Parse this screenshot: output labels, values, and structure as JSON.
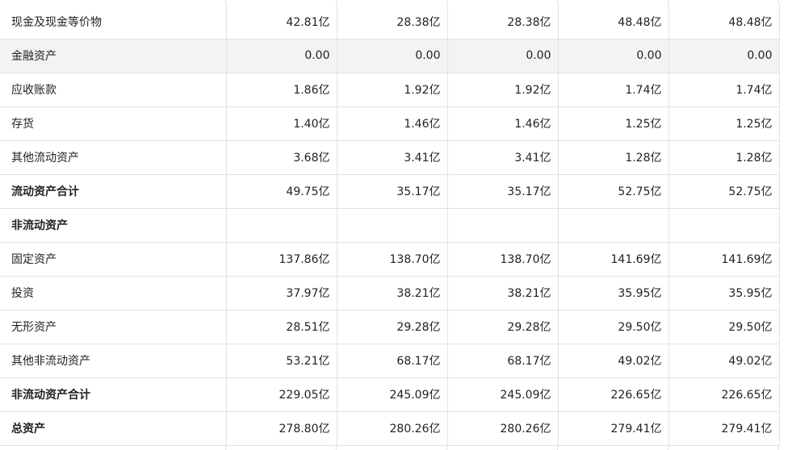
{
  "rows": [
    {
      "label": "现金及现金等价物",
      "values": [
        "42.81亿",
        "28.38亿",
        "28.38亿",
        "48.48亿",
        "48.48亿"
      ],
      "bold": false,
      "shaded": false
    },
    {
      "label": "金融资产",
      "values": [
        "0.00",
        "0.00",
        "0.00",
        "0.00",
        "0.00"
      ],
      "bold": false,
      "shaded": true
    },
    {
      "label": "应收账款",
      "values": [
        "1.86亿",
        "1.92亿",
        "1.92亿",
        "1.74亿",
        "1.74亿"
      ],
      "bold": false,
      "shaded": false
    },
    {
      "label": "存货",
      "values": [
        "1.40亿",
        "1.46亿",
        "1.46亿",
        "1.25亿",
        "1.25亿"
      ],
      "bold": false,
      "shaded": false
    },
    {
      "label": "其他流动资产",
      "values": [
        "3.68亿",
        "3.41亿",
        "3.41亿",
        "1.28亿",
        "1.28亿"
      ],
      "bold": false,
      "shaded": false
    },
    {
      "label": "流动资产合计",
      "values": [
        "49.75亿",
        "35.17亿",
        "35.17亿",
        "52.75亿",
        "52.75亿"
      ],
      "bold": true,
      "shaded": false
    },
    {
      "label": "非流动资产",
      "values": [
        "",
        "",
        "",
        "",
        ""
      ],
      "bold": true,
      "shaded": false
    },
    {
      "label": "固定资产",
      "values": [
        "137.86亿",
        "138.70亿",
        "138.70亿",
        "141.69亿",
        "141.69亿"
      ],
      "bold": false,
      "shaded": false
    },
    {
      "label": "投资",
      "values": [
        "37.97亿",
        "38.21亿",
        "38.21亿",
        "35.95亿",
        "35.95亿"
      ],
      "bold": false,
      "shaded": false
    },
    {
      "label": "无形资产",
      "values": [
        "28.51亿",
        "29.28亿",
        "29.28亿",
        "29.50亿",
        "29.50亿"
      ],
      "bold": false,
      "shaded": false
    },
    {
      "label": "其他非流动资产",
      "values": [
        "53.21亿",
        "68.17亿",
        "68.17亿",
        "49.02亿",
        "49.02亿"
      ],
      "bold": false,
      "shaded": false
    },
    {
      "label": "非流动资产合计",
      "values": [
        "229.05亿",
        "245.09亿",
        "245.09亿",
        "226.65亿",
        "226.65亿"
      ],
      "bold": true,
      "shaded": false
    },
    {
      "label": "总资产",
      "values": [
        "278.80亿",
        "280.26亿",
        "280.26亿",
        "279.41亿",
        "279.41亿"
      ],
      "bold": true,
      "shaded": false
    }
  ]
}
